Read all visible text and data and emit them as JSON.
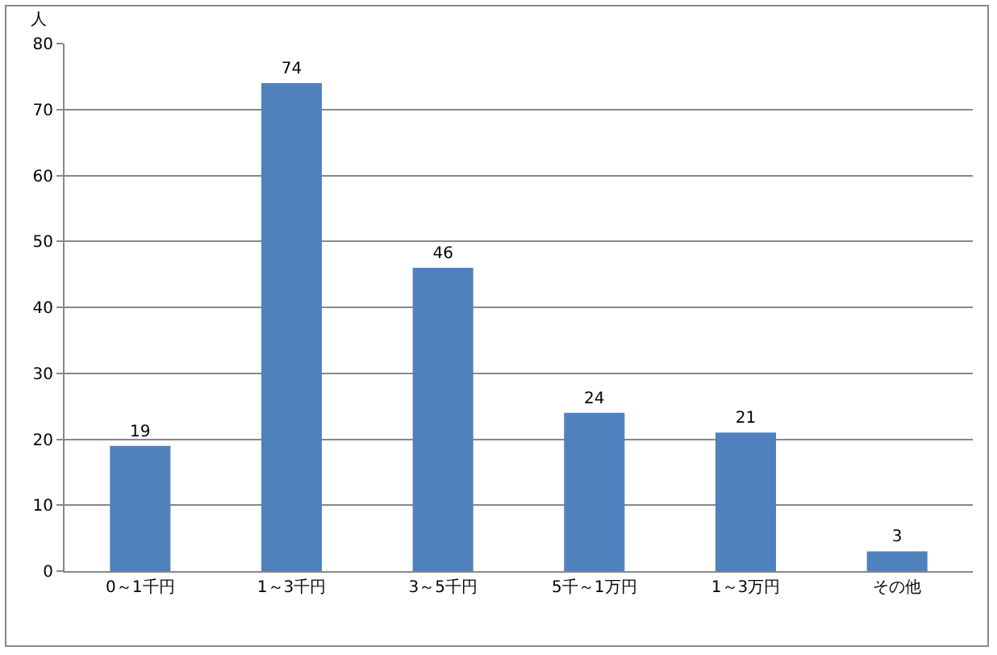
{
  "chart_data": {
    "type": "bar",
    "ylabel": "人",
    "categories": [
      "0～1千円",
      "1～3千円",
      "3～5千円",
      "5千～1万円",
      "1～3万円",
      "その他"
    ],
    "values": [
      19,
      74,
      46,
      24,
      21,
      3
    ],
    "color": "#4f81bd",
    "data_labels": true,
    "ylim": [
      0,
      80
    ],
    "yticks": [
      0,
      10,
      20,
      30,
      40,
      50,
      60,
      70,
      80
    ],
    "grid": "y"
  }
}
